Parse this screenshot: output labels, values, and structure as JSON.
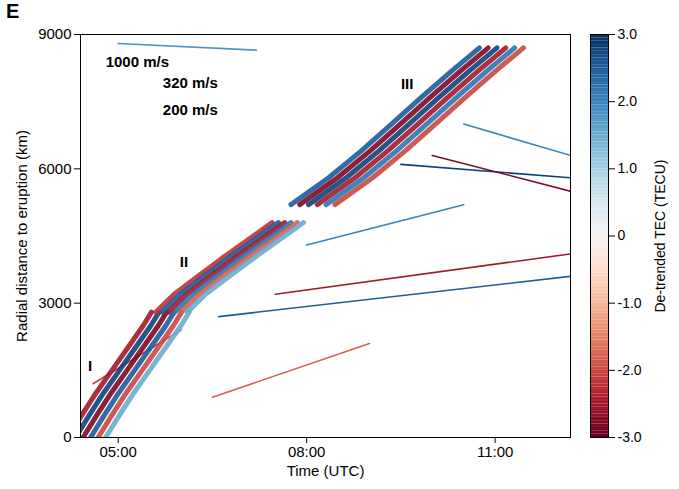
{
  "chart_data": {
    "type": "line",
    "panel_label": "E",
    "xlabel": "Time (UTC)",
    "ylabel": "Radial distance to eruption (km)",
    "xlim": [
      4.4,
      12.2
    ],
    "xticks": [
      {
        "value": 5,
        "label": "05:00"
      },
      {
        "value": 8,
        "label": "08:00"
      },
      {
        "value": 11,
        "label": "11:00"
      }
    ],
    "ylim": [
      0,
      9000
    ],
    "yticks": [
      0,
      3000,
      6000,
      9000
    ],
    "grid": false,
    "stripes": [
      {
        "value": -2.5,
        "x": [
          4.2,
          4.42,
          4.65,
          4.9,
          5.15,
          5.4,
          5.53
        ],
        "y": [
          0,
          500,
          1000,
          1500,
          2000,
          2500,
          2800
        ]
      },
      {
        "value": 2.8,
        "x": [
          4.32,
          4.54,
          4.77,
          5.02,
          5.27,
          5.52,
          5.65
        ],
        "y": [
          0,
          500,
          1000,
          1500,
          2000,
          2500,
          2800
        ]
      },
      {
        "value": -2.8,
        "x": [
          4.44,
          4.66,
          4.89,
          5.14,
          5.39,
          5.64,
          5.77
        ],
        "y": [
          0,
          500,
          1000,
          1500,
          2000,
          2500,
          2800
        ]
      },
      {
        "value": 2.5,
        "x": [
          4.56,
          4.78,
          5.01,
          5.26,
          5.51,
          5.76,
          5.89
        ],
        "y": [
          0,
          500,
          1000,
          1500,
          2000,
          2500,
          2800
        ]
      },
      {
        "value": -2.0,
        "x": [
          4.68,
          4.9,
          5.13,
          5.38,
          5.63,
          5.88,
          6.01
        ],
        "y": [
          0,
          500,
          1000,
          1500,
          2000,
          2500,
          2800
        ]
      },
      {
        "value": 1.5,
        "x": [
          4.8,
          5.02,
          5.25,
          5.5,
          5.75,
          6.0,
          6.13
        ],
        "y": [
          0,
          500,
          1000,
          1500,
          2000,
          2500,
          2800
        ]
      },
      {
        "value": -2.2,
        "x": [
          5.6,
          5.89,
          6.27,
          6.65,
          7.05,
          7.45
        ],
        "y": [
          2800,
          3200,
          3600,
          4000,
          4400,
          4800
        ]
      },
      {
        "value": 2.5,
        "x": [
          5.7,
          5.99,
          6.37,
          6.75,
          7.15,
          7.55
        ],
        "y": [
          2800,
          3200,
          3600,
          4000,
          4400,
          4800
        ]
      },
      {
        "value": -2.5,
        "x": [
          5.8,
          6.09,
          6.47,
          6.85,
          7.25,
          7.65
        ],
        "y": [
          2800,
          3200,
          3600,
          4000,
          4400,
          4800
        ]
      },
      {
        "value": 2.2,
        "x": [
          5.9,
          6.19,
          6.57,
          6.95,
          7.35,
          7.75
        ],
        "y": [
          2800,
          3200,
          3600,
          4000,
          4400,
          4800
        ]
      },
      {
        "value": -1.8,
        "x": [
          6.0,
          6.29,
          6.67,
          7.05,
          7.45,
          7.85
        ],
        "y": [
          2800,
          3200,
          3600,
          4000,
          4400,
          4800
        ]
      },
      {
        "value": 1.5,
        "x": [
          6.1,
          6.39,
          6.77,
          7.15,
          7.55,
          7.95
        ],
        "y": [
          2800,
          3200,
          3600,
          4000,
          4400,
          4800
        ]
      },
      {
        "value": 2.5,
        "x": [
          7.75,
          8.35,
          8.87,
          9.35,
          9.83,
          10.32,
          10.75
        ],
        "y": [
          5200,
          5800,
          6400,
          7000,
          7600,
          8200,
          8700
        ]
      },
      {
        "value": -2.8,
        "x": [
          7.89,
          8.49,
          9.01,
          9.49,
          9.97,
          10.46,
          10.89
        ],
        "y": [
          5200,
          5800,
          6400,
          7000,
          7600,
          8200,
          8700
        ]
      },
      {
        "value": 2.8,
        "x": [
          8.03,
          8.63,
          9.15,
          9.63,
          10.11,
          10.6,
          11.03
        ],
        "y": [
          5200,
          5800,
          6400,
          7000,
          7600,
          8200,
          8700
        ]
      },
      {
        "value": -2.5,
        "x": [
          8.17,
          8.77,
          9.29,
          9.77,
          10.25,
          10.74,
          11.17
        ],
        "y": [
          5200,
          5800,
          6400,
          7000,
          7600,
          8200,
          8700
        ]
      },
      {
        "value": 2.2,
        "x": [
          8.31,
          8.91,
          9.43,
          9.91,
          10.39,
          10.88,
          11.31
        ],
        "y": [
          5200,
          5800,
          6400,
          7000,
          7600,
          8200,
          8700
        ]
      },
      {
        "value": -2.0,
        "x": [
          8.45,
          9.05,
          9.57,
          10.05,
          10.53,
          11.02,
          11.45
        ],
        "y": [
          5200,
          5800,
          6400,
          7000,
          7600,
          8200,
          8700
        ]
      }
    ],
    "tracks": [
      {
        "value": 2.5,
        "x": [
          6.6,
          12.2
        ],
        "y": [
          2700,
          3600
        ]
      },
      {
        "value": -2.5,
        "x": [
          7.5,
          12.2
        ],
        "y": [
          3200,
          4100
        ]
      },
      {
        "value": 2.8,
        "x": [
          9.5,
          12.2
        ],
        "y": [
          6100,
          5800
        ]
      },
      {
        "value": -2.8,
        "x": [
          10.0,
          12.2
        ],
        "y": [
          6300,
          5500
        ]
      },
      {
        "value": 2.0,
        "x": [
          10.5,
          12.2
        ],
        "y": [
          7000,
          6300
        ]
      },
      {
        "value": -2.0,
        "x": [
          4.6,
          6.0
        ],
        "y": [
          1200,
          2400
        ]
      },
      {
        "value": 1.8,
        "x": [
          5.0,
          7.2
        ],
        "y": [
          8800,
          8650
        ]
      },
      {
        "value": -1.8,
        "x": [
          6.5,
          9.0
        ],
        "y": [
          900,
          2100
        ]
      },
      {
        "value": 2.0,
        "x": [
          8.0,
          10.5
        ],
        "y": [
          4300,
          5200
        ]
      }
    ],
    "annotations": [
      {
        "text": "1000 m/s",
        "x": 4.8,
        "y": 8390
      },
      {
        "text": "320 m/s",
        "x": 5.71,
        "y": 7910
      },
      {
        "text": "200 m/s",
        "x": 5.71,
        "y": 7320
      },
      {
        "text": "I",
        "x": 4.52,
        "y": 1600
      },
      {
        "text": "II",
        "x": 5.98,
        "y": 3920
      },
      {
        "text": "III",
        "x": 9.5,
        "y": 7900
      }
    ],
    "colorbar": {
      "label": "De-trended TEC (TECU)",
      "range": [
        -3,
        3
      ],
      "ticks": [
        {
          "value": 3,
          "label": "3.0"
        },
        {
          "value": 2,
          "label": "2.0"
        },
        {
          "value": 1,
          "label": "1.0"
        },
        0,
        {
          "value": -1,
          "label": "-1.0"
        },
        {
          "value": -2,
          "label": "-2.0"
        },
        {
          "value": -3,
          "label": "-3.0"
        }
      ]
    }
  }
}
